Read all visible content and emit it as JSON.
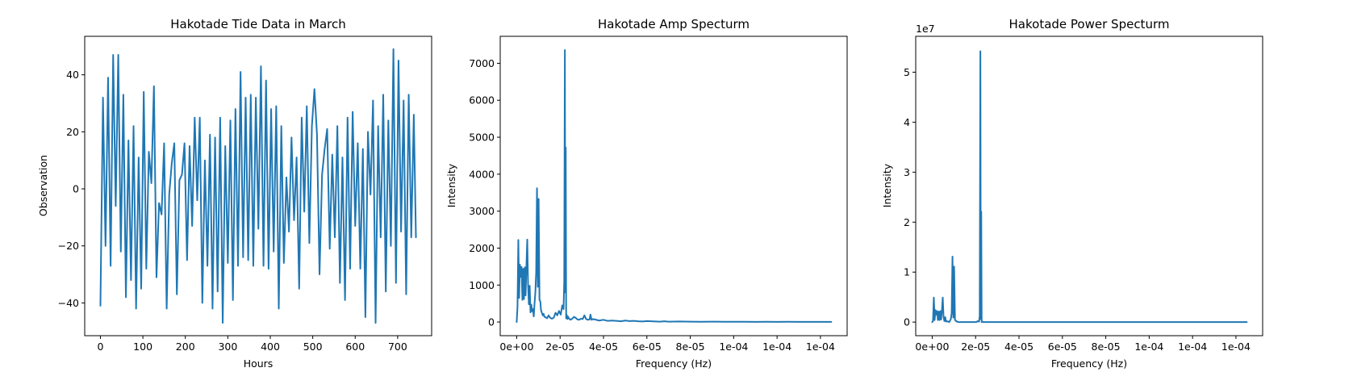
{
  "chart_data": [
    {
      "type": "line",
      "title": "Hakotade Tide Data in March",
      "xlabel": "Hours",
      "ylabel": "Observation",
      "xlim": [
        -37,
        780
      ],
      "ylim": [
        -51.5,
        53.5
      ],
      "xticks": [
        0,
        100,
        200,
        300,
        400,
        500,
        600,
        700
      ],
      "xtick_labels": [
        "0",
        "100",
        "200",
        "300",
        "400",
        "500",
        "600",
        "700"
      ],
      "yticks": [
        -40,
        -20,
        0,
        20,
        40
      ],
      "ytick_labels": [
        "−40",
        "−20",
        "0",
        "20",
        "40"
      ],
      "color": "#1f77b4",
      "series": [
        {
          "x": [
            0,
            6,
            12,
            18,
            24,
            30,
            36,
            42,
            48,
            54,
            60,
            66,
            72,
            78,
            84,
            90,
            96,
            102,
            108,
            114,
            120,
            126,
            132,
            138,
            144,
            150,
            156,
            162,
            168,
            174,
            180,
            186,
            192,
            198,
            204,
            210,
            216,
            222,
            228,
            234,
            240,
            246,
            252,
            258,
            264,
            270,
            276,
            282,
            288,
            294,
            300,
            306,
            312,
            318,
            324,
            330,
            336,
            342,
            348,
            354,
            360,
            366,
            372,
            378,
            384,
            390,
            396,
            402,
            408,
            414,
            420,
            426,
            432,
            438,
            444,
            450,
            456,
            462,
            468,
            474,
            480,
            486,
            492,
            498,
            504,
            510,
            516,
            522,
            528,
            534,
            540,
            546,
            552,
            558,
            564,
            570,
            576,
            582,
            588,
            594,
            600,
            606,
            612,
            618,
            624,
            630,
            636,
            642,
            648,
            654,
            660,
            666,
            672,
            678,
            684,
            690,
            696,
            702,
            708,
            714,
            720,
            726,
            732,
            738,
            743
          ],
          "y": [
            -41,
            32,
            -20,
            39,
            -27,
            47,
            -6,
            47,
            -22,
            33,
            -38,
            17,
            -32,
            22,
            -42,
            11,
            -35,
            34,
            -28,
            13,
            2,
            36,
            -31,
            -5,
            -9,
            16,
            -42,
            -2,
            9,
            16,
            -37,
            3,
            5,
            16,
            -25,
            15,
            -13,
            25,
            -4,
            25,
            -40,
            10,
            -27,
            19,
            -42,
            18,
            -36,
            25,
            -47,
            15,
            -26,
            24,
            -39,
            28,
            -27,
            41,
            -24,
            32,
            -25,
            33,
            -27,
            32,
            -14,
            43,
            -27,
            38,
            -28,
            28,
            -22,
            29,
            -42,
            22,
            -26,
            4,
            -15,
            18,
            -11,
            11,
            -35,
            25,
            -8,
            29,
            -19,
            22,
            35,
            19,
            -30,
            5,
            14,
            21,
            -21,
            12,
            -17,
            22,
            -33,
            11,
            -39,
            25,
            -28,
            27,
            -13,
            16,
            -28,
            14,
            -45,
            20,
            -2,
            31,
            -47,
            22,
            -17,
            33,
            -36,
            24,
            -20,
            49,
            -33,
            45,
            -15,
            31,
            -37,
            33,
            -17,
            26,
            -17
          ]
        }
      ]
    },
    {
      "type": "line",
      "title": "Hakotade Amp Specturm",
      "xlabel": "Frequency (Hz)",
      "ylabel": "Intensity",
      "xlim": [
        -7.6e-06,
        0.0001523
      ],
      "ylim": [
        -370,
        7730
      ],
      "xticks": [
        0,
        2e-05,
        4e-05,
        6e-05,
        8e-05,
        0.0001,
        0.00012,
        0.00014
      ],
      "xtick_labels": [
        "0e+00",
        "2e-05",
        "4e-05",
        "6e-05",
        "8e-05",
        "1e-04",
        "1e-04",
        "1e-04"
      ],
      "yticks": [
        0,
        1000,
        2000,
        3000,
        4000,
        5000,
        6000,
        7000
      ],
      "ytick_labels": [
        "0",
        "1000",
        "2000",
        "3000",
        "4000",
        "5000",
        "6000",
        "7000"
      ],
      "color": "#1f77b4",
      "series": [
        {
          "x": [
            0,
            3.7e-07,
            7.5e-07,
            1.12e-06,
            1.5e-06,
            1.87e-06,
            2.24e-06,
            2.62e-06,
            2.99e-06,
            3.36e-06,
            3.74e-06,
            4.11e-06,
            4.49e-06,
            4.86e-06,
            5.23e-06,
            5.61e-06,
            5.98e-06,
            6.36e-06,
            6.73e-06,
            7.1e-06,
            7.48e-06,
            7.85e-06,
            8.22e-06,
            8.6e-06,
            8.97e-06,
            9.35e-06,
            9.72e-06,
            1.01e-05,
            1.05e-05,
            1.09e-05,
            1.12e-05,
            1.16e-05,
            1.2e-05,
            1.24e-05,
            1.28e-05,
            1.33e-05,
            1.4e-05,
            1.47e-05,
            1.55e-05,
            1.63e-05,
            1.71e-05,
            1.79e-05,
            1.87e-05,
            1.95e-05,
            2.03e-05,
            2.1e-05,
            2.16e-05,
            2.19e-05,
            2.22e-05,
            2.24e-05,
            2.26e-05,
            2.28e-05,
            2.3e-05,
            2.32e-05,
            2.34e-05,
            2.36e-05,
            2.4e-05,
            2.48e-05,
            2.56e-05,
            2.64e-05,
            2.72e-05,
            2.8e-05,
            2.88e-05,
            2.96e-05,
            3.04e-05,
            3.12e-05,
            3.2e-05,
            3.28e-05,
            3.36e-05,
            3.4e-05,
            3.45e-05,
            3.52e-05,
            3.6e-05,
            3.8e-05,
            4e-05,
            4.2e-05,
            4.4e-05,
            4.6e-05,
            4.8e-05,
            5e-05,
            5.2e-05,
            5.4e-05,
            5.6e-05,
            5.8e-05,
            6e-05,
            6.2e-05,
            6.4e-05,
            6.6e-05,
            6.8e-05,
            7e-05,
            7.5e-05,
            8e-05,
            8.5e-05,
            9e-05,
            9.5e-05,
            0.0001,
            0.000105,
            0.00011,
            0.000115,
            0.00012,
            0.000125,
            0.00013,
            0.000135,
            0.00014,
            0.000145
          ],
          "y": [
            0,
            420,
            2220,
            650,
            1550,
            1220,
            1490,
            600,
            1440,
            620,
            1480,
            720,
            1540,
            2230,
            1020,
            480,
            980,
            260,
            470,
            290,
            350,
            150,
            500,
            800,
            1350,
            3620,
            950,
            3330,
            600,
            550,
            320,
            250,
            180,
            220,
            140,
            130,
            100,
            180,
            110,
            90,
            120,
            250,
            180,
            300,
            200,
            450,
            350,
            1100,
            7360,
            800,
            4720,
            100,
            200,
            120,
            80,
            150,
            100,
            60,
            90,
            140,
            110,
            70,
            60,
            90,
            80,
            180,
            80,
            60,
            70,
            200,
            60,
            80,
            70,
            40,
            60,
            30,
            40,
            30,
            20,
            40,
            25,
            30,
            20,
            15,
            25,
            20,
            15,
            10,
            20,
            10,
            15,
            10,
            8,
            10,
            8,
            6,
            8,
            5,
            6,
            5,
            6,
            4,
            5,
            3,
            3
          ]
        }
      ]
    },
    {
      "type": "line",
      "title": "Hakotade Power Specturm",
      "xlabel": "Frequency (Hz)",
      "ylabel": "Intensity",
      "yaxis_scale_label": "1e7",
      "xlim": [
        -7.6e-06,
        0.0001523
      ],
      "ylim": [
        -0.272,
        5.718
      ],
      "xticks": [
        0,
        2e-05,
        4e-05,
        6e-05,
        8e-05,
        0.0001,
        0.00012,
        0.00014
      ],
      "xtick_labels": [
        "0e+00",
        "2e-05",
        "4e-05",
        "6e-05",
        "8e-05",
        "1e-04",
        "1e-04",
        "1e-04"
      ],
      "yticks": [
        0,
        1,
        2,
        3,
        4,
        5
      ],
      "ytick_labels": [
        "0",
        "1",
        "2",
        "3",
        "4",
        "5"
      ],
      "color": "#1f77b4",
      "series": [
        {
          "x": [
            0,
            3.7e-07,
            7.5e-07,
            1.12e-06,
            1.5e-06,
            1.87e-06,
            2.24e-06,
            2.62e-06,
            2.99e-06,
            3.36e-06,
            3.74e-06,
            4.11e-06,
            4.49e-06,
            4.86e-06,
            5.23e-06,
            5.61e-06,
            5.98e-06,
            6.36e-06,
            6.73e-06,
            7.1e-06,
            7.48e-06,
            7.85e-06,
            8.22e-06,
            8.6e-06,
            8.97e-06,
            9.35e-06,
            9.72e-06,
            1.01e-05,
            1.05e-05,
            1.09e-05,
            1.12e-05,
            1.16e-05,
            1.2e-05,
            1.28e-05,
            1.4e-05,
            1.55e-05,
            1.71e-05,
            1.87e-05,
            2.03e-05,
            2.1e-05,
            2.16e-05,
            2.19e-05,
            2.22e-05,
            2.24e-05,
            2.26e-05,
            2.28e-05,
            2.3e-05,
            2.34e-05,
            2.4e-05,
            2.6e-05,
            3e-05,
            4e-05,
            5e-05,
            6e-05,
            7e-05,
            8e-05,
            9e-05,
            0.0001,
            0.00011,
            0.00012,
            0.00013,
            0.00014,
            0.000145
          ],
          "y": [
            0,
            0.02,
            0.49,
            0.04,
            0.24,
            0.15,
            0.22,
            0.04,
            0.21,
            0.04,
            0.22,
            0.05,
            0.24,
            0.49,
            0.1,
            0.02,
            0.1,
            0.01,
            0.02,
            0.01,
            0.01,
            0,
            0.03,
            0.06,
            0.18,
            1.31,
            0.09,
            1.11,
            0.04,
            0.03,
            0.01,
            0.01,
            0,
            0,
            0,
            0,
            0,
            0,
            0,
            0.02,
            0.01,
            0.12,
            5.42,
            0.06,
            2.21,
            0,
            0.01,
            0,
            0,
            0,
            0,
            0,
            0,
            0,
            0,
            0,
            0,
            0,
            0,
            0,
            0,
            0,
            0
          ]
        }
      ]
    }
  ]
}
